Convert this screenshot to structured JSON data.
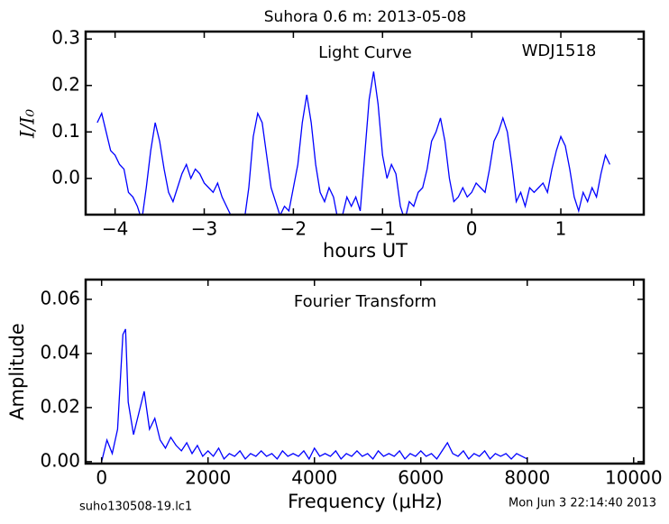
{
  "title": "Suhora 0.6 m:  2013-05-08",
  "footer": {
    "left": "suho130508-19.lc1",
    "right": "Mon Jun  3 22:14:40 2013"
  },
  "chart_data": [
    {
      "type": "line",
      "annotations": [
        "Light Curve",
        "WDJ1518"
      ],
      "xlabel": "hours UT",
      "ylabel": "I/I₀",
      "x": [
        -4.2,
        -4.15,
        -4.1,
        -4.05,
        -4.0,
        -3.95,
        -3.9,
        -3.85,
        -3.8,
        -3.75,
        -3.7,
        -3.65,
        -3.6,
        -3.55,
        -3.5,
        -3.45,
        -3.4,
        -3.35,
        -3.3,
        -3.25,
        -3.2,
        -3.15,
        -3.1,
        -3.05,
        -3.0,
        -2.95,
        -2.9,
        -2.85,
        -2.8,
        -2.75,
        -2.7,
        -2.65,
        -2.6,
        -2.55,
        -2.5,
        -2.45,
        -2.4,
        -2.35,
        -2.3,
        -2.25,
        -2.2,
        -2.15,
        -2.1,
        -2.05,
        -2.0,
        -1.95,
        -1.9,
        -1.85,
        -1.8,
        -1.75,
        -1.7,
        -1.65,
        -1.6,
        -1.55,
        -1.5,
        -1.45,
        -1.4,
        -1.35,
        -1.3,
        -1.25,
        -1.2,
        -1.15,
        -1.1,
        -1.05,
        -1.0,
        -0.95,
        -0.9,
        -0.85,
        -0.8,
        -0.75,
        -0.7,
        -0.65,
        -0.6,
        -0.55,
        -0.5,
        -0.45,
        -0.4,
        -0.35,
        -0.3,
        -0.25,
        -0.2,
        -0.15,
        -0.1,
        -0.05,
        0.0,
        0.05,
        0.1,
        0.15,
        0.2,
        0.25,
        0.3,
        0.35,
        0.4,
        0.45,
        0.5,
        0.55,
        0.6,
        0.65,
        0.7,
        0.75,
        0.8,
        0.85,
        0.9,
        0.95,
        1.0,
        1.05,
        1.1,
        1.15,
        1.2,
        1.25,
        1.3,
        1.35,
        1.4,
        1.45,
        1.5,
        1.55
      ],
      "series": [
        {
          "color": "#0000ff",
          "values": [
            0.12,
            0.14,
            0.1,
            0.06,
            0.05,
            0.03,
            0.02,
            -0.03,
            -0.04,
            -0.06,
            -0.09,
            -0.02,
            0.06,
            0.12,
            0.08,
            0.02,
            -0.03,
            -0.05,
            -0.02,
            0.01,
            0.03,
            0.0,
            0.02,
            0.01,
            -0.01,
            -0.02,
            -0.03,
            -0.01,
            -0.04,
            -0.06,
            -0.08,
            -0.1,
            -0.1,
            -0.09,
            -0.02,
            0.09,
            0.14,
            0.12,
            0.05,
            -0.02,
            -0.05,
            -0.08,
            -0.06,
            -0.07,
            -0.02,
            0.03,
            0.12,
            0.18,
            0.12,
            0.03,
            -0.03,
            -0.05,
            -0.02,
            -0.04,
            -0.09,
            -0.08,
            -0.04,
            -0.06,
            -0.04,
            -0.07,
            0.05,
            0.17,
            0.23,
            0.16,
            0.05,
            0.0,
            0.03,
            0.01,
            -0.06,
            -0.09,
            -0.05,
            -0.06,
            -0.03,
            -0.02,
            0.02,
            0.08,
            0.1,
            0.13,
            0.08,
            0.0,
            -0.05,
            -0.04,
            -0.02,
            -0.04,
            -0.03,
            -0.01,
            -0.02,
            -0.03,
            0.02,
            0.08,
            0.1,
            0.13,
            0.1,
            0.03,
            -0.05,
            -0.03,
            -0.06,
            -0.02,
            -0.03,
            -0.02,
            -0.01,
            -0.03,
            0.02,
            0.06,
            0.09,
            0.07,
            0.02,
            -0.04,
            -0.07,
            -0.03,
            -0.05,
            -0.02,
            -0.04,
            0.01,
            0.05,
            0.03
          ]
        }
      ],
      "xlim": [
        -4.33,
        1.93
      ],
      "ylim": [
        -0.078,
        0.316
      ],
      "xticks": [
        {
          "value": -4,
          "label": "−4"
        },
        {
          "value": -3,
          "label": "−3"
        },
        {
          "value": -2,
          "label": "−2"
        },
        {
          "value": -1,
          "label": "−1"
        },
        0,
        1
      ],
      "yticks": [
        {
          "value": 0,
          "label": "0.0"
        },
        {
          "value": 0.1,
          "label": "0.1"
        },
        {
          "value": 0.2,
          "label": "0.2"
        },
        {
          "value": 0.3,
          "label": "0.3"
        }
      ]
    },
    {
      "type": "line",
      "annotations": [
        "Fourier Transform"
      ],
      "xlabel": "Frequency (μHz)",
      "ylabel": "Amplitude",
      "x": [
        0,
        100,
        200,
        300,
        400,
        450,
        500,
        600,
        700,
        800,
        900,
        1000,
        1100,
        1200,
        1300,
        1400,
        1500,
        1600,
        1700,
        1800,
        1900,
        2000,
        2100,
        2200,
        2300,
        2400,
        2500,
        2600,
        2700,
        2800,
        2900,
        3000,
        3100,
        3200,
        3300,
        3400,
        3500,
        3600,
        3700,
        3800,
        3900,
        4000,
        4100,
        4200,
        4300,
        4400,
        4500,
        4600,
        4700,
        4800,
        4900,
        5000,
        5100,
        5200,
        5300,
        5400,
        5500,
        5600,
        5700,
        5800,
        5900,
        6000,
        6100,
        6200,
        6300,
        6400,
        6500,
        6600,
        6700,
        6800,
        6900,
        7000,
        7100,
        7200,
        7300,
        7400,
        7500,
        7600,
        7700,
        7800,
        7900,
        8000
      ],
      "series": [
        {
          "color": "#0000ff",
          "values": [
            0.0,
            0.008,
            0.003,
            0.012,
            0.047,
            0.049,
            0.022,
            0.01,
            0.018,
            0.026,
            0.012,
            0.016,
            0.008,
            0.005,
            0.009,
            0.006,
            0.004,
            0.007,
            0.003,
            0.006,
            0.002,
            0.004,
            0.002,
            0.005,
            0.001,
            0.003,
            0.002,
            0.004,
            0.001,
            0.003,
            0.002,
            0.004,
            0.002,
            0.003,
            0.001,
            0.004,
            0.002,
            0.003,
            0.002,
            0.004,
            0.001,
            0.005,
            0.002,
            0.003,
            0.002,
            0.004,
            0.001,
            0.003,
            0.002,
            0.004,
            0.002,
            0.003,
            0.001,
            0.004,
            0.002,
            0.003,
            0.002,
            0.004,
            0.001,
            0.003,
            0.002,
            0.004,
            0.002,
            0.003,
            0.001,
            0.004,
            0.007,
            0.003,
            0.002,
            0.004,
            0.001,
            0.003,
            0.002,
            0.004,
            0.001,
            0.003,
            0.002,
            0.003,
            0.001,
            0.003,
            0.002,
            0.001
          ]
        }
      ],
      "xlim": [
        -300,
        10190
      ],
      "ylim": [
        -0.0007,
        0.0673
      ],
      "xticks": [
        0,
        2000,
        4000,
        6000,
        8000,
        10000
      ],
      "yticks": [
        {
          "value": 0,
          "label": "0.00"
        },
        {
          "value": 0.02,
          "label": "0.02"
        },
        {
          "value": 0.04,
          "label": "0.04"
        },
        {
          "value": 0.06,
          "label": "0.06"
        }
      ]
    }
  ]
}
